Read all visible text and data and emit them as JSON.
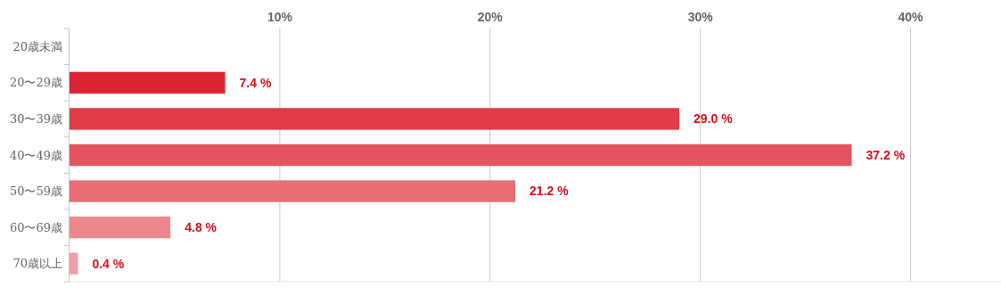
{
  "chart_data": {
    "type": "bar",
    "orientation": "horizontal",
    "categories": [
      "20歳未満",
      "20〜29歳",
      "30〜39歳",
      "40〜49歳",
      "50〜59歳",
      "60〜69歳",
      "70歳以上"
    ],
    "values": [
      0,
      7.4,
      29.0,
      37.2,
      21.2,
      4.8,
      0.4
    ],
    "colors": [
      "#dc2332",
      "#dc2332",
      "#e03c48",
      "#e45560",
      "#e86d74",
      "#ec878c",
      "#f0a0a6"
    ],
    "value_labels": [
      null,
      "7.4 %",
      "29.0 %",
      "37.2 %",
      "21.2 %",
      "4.8 %",
      "0.4 %"
    ],
    "xlim": [
      0,
      44.3
    ],
    "xticks": [
      {
        "value": 10,
        "label": "10%"
      },
      {
        "value": 20,
        "label": "20%"
      },
      {
        "value": 30,
        "label": "30%"
      },
      {
        "value": 40,
        "label": "40%"
      }
    ],
    "grid": "x"
  }
}
